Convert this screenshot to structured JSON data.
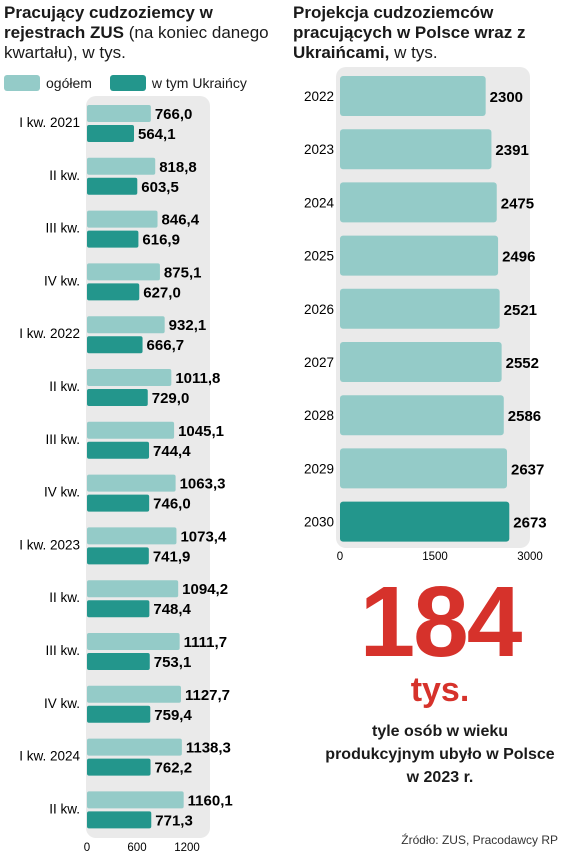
{
  "left_title": {
    "bold": "Pracujący cudzoziemcy w rejestrach ZUS",
    "light": "(na koniec danego kwartału), w tys."
  },
  "right_title": {
    "bold": "Projekcja cudzoziemców pracujących w Polsce wraz z Ukraińcami,",
    "light": "w tys."
  },
  "legend": [
    {
      "label": "ogółem",
      "color": "#94cbc8"
    },
    {
      "label": "w tym Ukraińcy",
      "color": "#23968c"
    }
  ],
  "colors": {
    "light": "#94cbc8",
    "dark": "#23968c",
    "accent": "#d6322b",
    "panel": "#eaeaea"
  },
  "chart_data": [
    {
      "type": "bar",
      "orientation": "horizontal",
      "categories": [
        "I  kw. 2021",
        "II kw.",
        "III kw.",
        "IV kw.",
        "I kw. 2022",
        "II kw.",
        "III kw.",
        "IV kw.",
        "I kw. 2023",
        "II kw.",
        "III kw.",
        "IV kw.",
        "I kw. 2024",
        "II kw."
      ],
      "series": [
        {
          "name": "ogółem",
          "values": [
            766.0,
            818.8,
            846.4,
            875.1,
            932.1,
            1011.8,
            1045.1,
            1063.3,
            1073.4,
            1094.2,
            1111.7,
            1127.7,
            1138.3,
            1160.1
          ],
          "labels": [
            "766,0",
            "818,8",
            "846,4",
            "875,1",
            "932,1",
            "1011,8",
            "1045,1",
            "1063,3",
            "1073,4",
            "1094,2",
            "1111,7",
            "1127,7",
            "1138,3",
            "1160,1"
          ]
        },
        {
          "name": "w tym Ukraińcy",
          "values": [
            564.1,
            603.5,
            616.9,
            627.0,
            666.7,
            729.0,
            744.4,
            746.0,
            741.9,
            748.4,
            753.1,
            759.4,
            762.2,
            771.3
          ],
          "labels": [
            "564,1",
            "603,5",
            "616,9",
            "627,0",
            "666,7",
            "729,0",
            "744,4",
            "746,0",
            "741,9",
            "748,4",
            "753,1",
            "759,4",
            "762,2",
            "771,3"
          ]
        }
      ],
      "xlim": [
        0,
        1200
      ],
      "xticks": [
        "0",
        "600",
        "1200"
      ],
      "grid": false
    },
    {
      "type": "bar",
      "orientation": "horizontal",
      "categories": [
        "2022",
        "2023",
        "2024",
        "2025",
        "2026",
        "2027",
        "2028",
        "2029",
        "2030"
      ],
      "values": [
        2300,
        2391,
        2475,
        2496,
        2521,
        2552,
        2586,
        2637,
        2673
      ],
      "highlight": "2030",
      "xlim": [
        0,
        3000
      ],
      "xticks": [
        "0",
        "1500",
        "3000"
      ],
      "grid": false
    }
  ],
  "highlight": {
    "number": "184",
    "unit": "tys.",
    "description": "tyle osób w wieku produkcyjnym ubyło w Polsce w 2023 r."
  },
  "source": "Źródło: ZUS, Pracodawcy RP"
}
